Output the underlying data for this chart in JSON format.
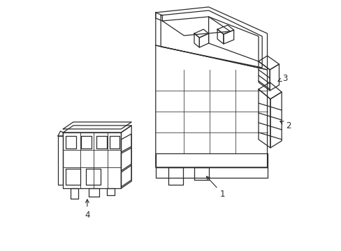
{
  "background_color": "#ffffff",
  "line_color": "#2a2a2a",
  "line_width": 0.9,
  "label_fontsize": 8.5
}
